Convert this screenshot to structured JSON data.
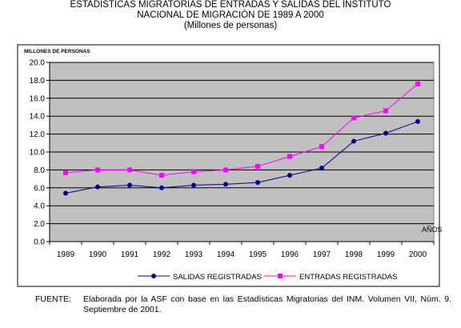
{
  "chart_data": {
    "type": "line",
    "title_lines": [
      "ESTADÍSTICAS MIGRATORIAS DE ENTRADAS Y SALIDAS DEL INSTITUTO",
      "NACIONAL DE MIGRACIÓN DE 1989 A 2000"
    ],
    "subtitle": "(Millones de personas)",
    "ylabel": "MILLONES DE PERSONAS",
    "xlabel": "AÑOS",
    "x": [
      "1989",
      "1990",
      "1991",
      "1992",
      "1993",
      "1994",
      "1995",
      "1996",
      "1997",
      "1998",
      "1999",
      "2000"
    ],
    "ylim": [
      0,
      20
    ],
    "yticks": [
      "0.0",
      "2.0",
      "4.0",
      "6.0",
      "8.0",
      "10.0",
      "12.0",
      "14.0",
      "16.0",
      "18.0",
      "20.0"
    ],
    "grid": true,
    "legend_position": "bottom",
    "series": [
      {
        "name": "SALIDAS REGISTRADAS",
        "color": "#000080",
        "marker": "circle",
        "values": [
          5.4,
          6.1,
          6.3,
          6.0,
          6.3,
          6.4,
          6.6,
          7.4,
          8.2,
          11.2,
          12.1,
          13.4
        ]
      },
      {
        "name": "ENTRADAS REGISTRADAS",
        "color": "#ff00ff",
        "marker": "square",
        "values": [
          7.7,
          8.0,
          8.0,
          7.4,
          7.8,
          8.0,
          8.4,
          9.5,
          10.6,
          13.8,
          14.6,
          17.6
        ]
      }
    ]
  },
  "source": {
    "label": "FUENTE:",
    "text": "Elaborada por la ASF con base en las Estadísticas Migratorias del INM. Volumen VII, Núm. 9. Septiembre de 2001."
  }
}
